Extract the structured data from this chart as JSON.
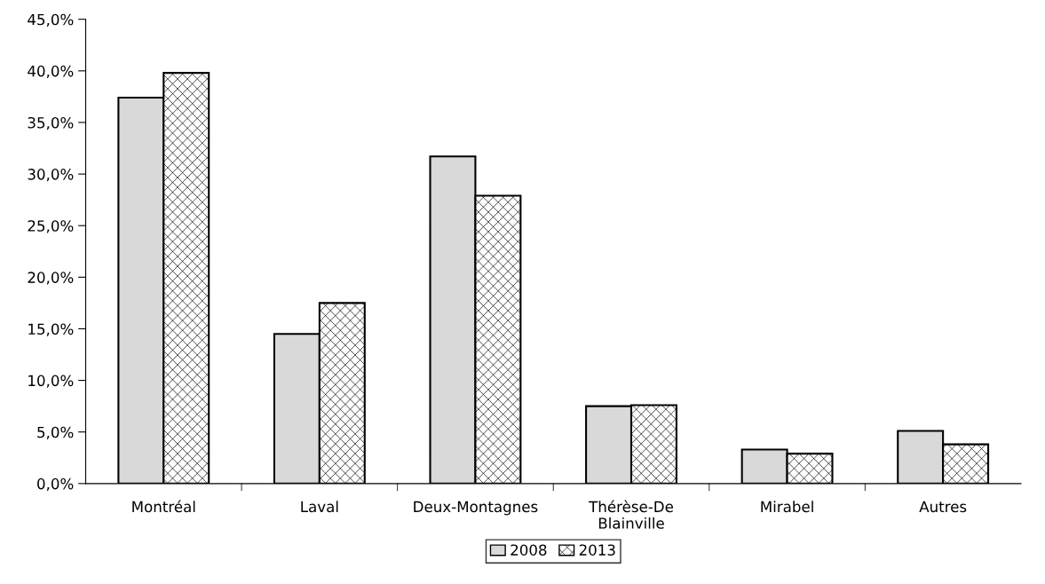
{
  "chart_data": {
    "type": "bar",
    "categories": [
      "Montréal",
      "Laval",
      "Deux-Montagnes",
      "Thérèse-De\nBlainville",
      "Mirabel",
      "Autres"
    ],
    "series": [
      {
        "name": "2008",
        "color": "#d9d9d9",
        "values": [
          37.4,
          14.5,
          31.7,
          7.5,
          3.3,
          5.1
        ]
      },
      {
        "name": "2013",
        "color": "#000000",
        "values": [
          39.8,
          17.5,
          27.9,
          7.6,
          2.9,
          3.8
        ]
      }
    ],
    "ylim": [
      0,
      45
    ],
    "yticks": [
      {
        "value": 0,
        "label": "0,0%"
      },
      {
        "value": 5,
        "label": "5,0%"
      },
      {
        "value": 10,
        "label": "10,0%"
      },
      {
        "value": 15,
        "label": "15,0%"
      },
      {
        "value": 20,
        "label": "20,0%"
      },
      {
        "value": 25,
        "label": "25,0%"
      },
      {
        "value": 30,
        "label": "30,0%"
      },
      {
        "value": 35,
        "label": "35,0%"
      },
      {
        "value": 40,
        "label": "40,0%"
      },
      {
        "value": 45,
        "label": "45,0%"
      }
    ],
    "legend": "bottom",
    "grid": false
  }
}
